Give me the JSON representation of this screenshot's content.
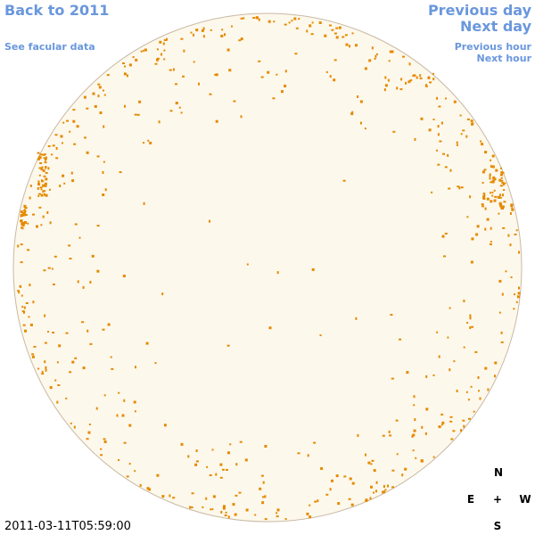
{
  "links": {
    "back": "Back to 2011",
    "previous_day": "Previous day",
    "next_day": "Next day",
    "facular_data": "See facular data",
    "previous_hour": "Previous hour",
    "next_hour": "Next hour"
  },
  "timestamp": "2011-03-11T05:59:00",
  "compass": {
    "north": "N",
    "east": "E",
    "center": "+",
    "west": "W",
    "south": "S"
  }
}
